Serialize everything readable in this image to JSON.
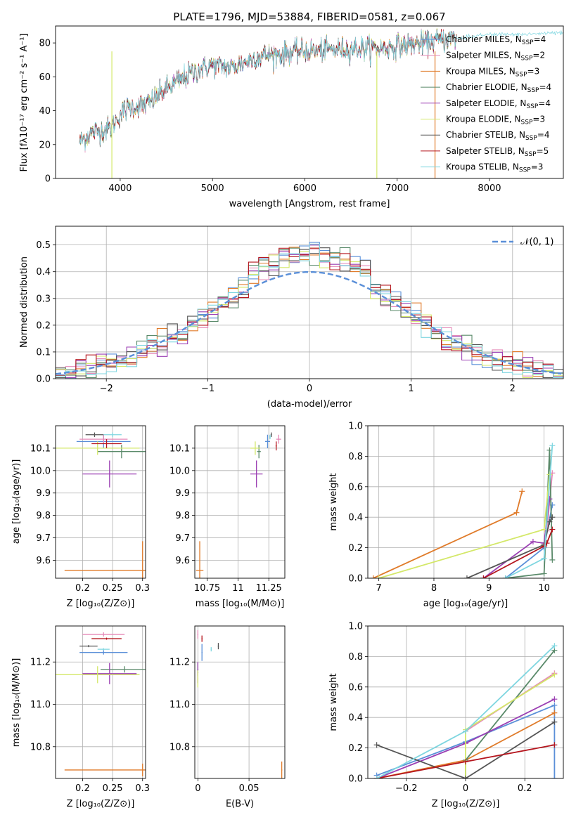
{
  "figure": {
    "title": "PLATE=1796, MJD=53884, FIBERID=0581, z=0.067"
  },
  "colors": {
    "Chabrier MILES": "#5a8fd8",
    "Salpeter MILES": "#e58ab8",
    "Kroupa MILES": "#e07b2a",
    "Chabrier ELODIE": "#5a8a6a",
    "Salpeter ELODIE": "#9b3fb3",
    "Kroupa ELODIE": "#d4e86a",
    "Chabrier STELIB": "#555555",
    "Salpeter STELIB": "#b5161e",
    "Kroupa STELIB": "#7fd6e0",
    "normal": "#5a8fd8"
  },
  "chart_data": [
    {
      "id": "spectrum",
      "type": "line",
      "title": "PLATE=1796, MJD=53884, FIBERID=0581, z=0.067",
      "xlabel": "wavelength [Angstrom, rest frame]",
      "ylabel": "Flux [f_λ 10^-17 erg cm^-2 s^-1 A^-1]",
      "xlim": [
        3300,
        8800
      ],
      "ylim": [
        0,
        90
      ],
      "xticks": [
        4000,
        5000,
        6000,
        7000,
        8000
      ],
      "yticks": [
        0,
        20,
        40,
        60,
        80
      ],
      "legend_placement": "right",
      "legend": [
        {
          "name": "Chabrier MILES",
          "nssp": "4"
        },
        {
          "name": "Salpeter MILES",
          "nssp": "2"
        },
        {
          "name": "Kroupa MILES",
          "nssp": "3"
        },
        {
          "name": "Chabrier ELODIE",
          "nssp": "4"
        },
        {
          "name": "Salpeter ELODIE",
          "nssp": "4"
        },
        {
          "name": "Kroupa ELODIE",
          "nssp": "3"
        },
        {
          "name": "Chabrier STELIB",
          "nssp": "4"
        },
        {
          "name": "Salpeter STELIB",
          "nssp": "5"
        },
        {
          "name": "Kroupa STELIB",
          "nssp": "3"
        }
      ],
      "continuum": {
        "x": [
          3560,
          3700,
          3900,
          4000,
          4100,
          4300,
          4500,
          4800,
          5000,
          5200,
          5500,
          5800,
          6000,
          6300,
          6600,
          6800,
          7000,
          7300,
          7500,
          7700,
          8000,
          8300,
          8800
        ],
        "y": [
          22,
          27,
          30,
          38,
          42,
          44,
          53,
          63,
          67,
          65,
          72,
          74,
          75,
          76,
          77,
          77,
          78,
          80,
          82,
          83,
          85,
          85,
          86
        ]
      },
      "grid": false
    },
    {
      "id": "residuals",
      "type": "histogram",
      "xlabel": "(data-model)/error",
      "ylabel": "Normed distribution",
      "xlim": [
        -2.5,
        2.5
      ],
      "ylim": [
        0,
        0.57
      ],
      "xticks": [
        -2,
        -1,
        0,
        1,
        2
      ],
      "yticks": [
        0.0,
        0.1,
        0.2,
        0.3,
        0.4,
        0.5
      ],
      "reference_curve": "N(0,1)",
      "legend": [
        "𝒩(0, 1)"
      ],
      "legend_placement": "top-right",
      "grid": true
    },
    {
      "id": "age-vs-z",
      "type": "scatter",
      "xlabel": "Z [log10(Z/Z⊙)]",
      "ylabel": "age [log10(age/yr)]",
      "xlim": [
        0.155,
        0.305
      ],
      "ylim": [
        9.52,
        10.2
      ],
      "xticks": [
        0.2,
        0.25,
        0.3
      ],
      "yticks": [
        9.6,
        9.7,
        9.8,
        9.9,
        10.0,
        10.1
      ],
      "points": [
        {
          "series": "Chabrier MILES",
          "x": 0.235,
          "y": 10.13,
          "xerr": 0.045,
          "yerr": 0.03
        },
        {
          "series": "Salpeter MILES",
          "x": 0.235,
          "y": 10.14,
          "xerr": 0.04,
          "yerr": 0.02
        },
        {
          "series": "Kroupa MILES",
          "x": 0.3,
          "y": 9.555,
          "xerr": 0.13,
          "yerr": 0.13
        },
        {
          "series": "Chabrier ELODIE",
          "x": 0.265,
          "y": 10.085,
          "xerr": 0.04,
          "yerr": 0.03
        },
        {
          "series": "Salpeter ELODIE",
          "x": 0.245,
          "y": 9.985,
          "xerr": 0.045,
          "yerr": 0.06
        },
        {
          "series": "Kroupa ELODIE",
          "x": 0.225,
          "y": 10.1,
          "xerr": 0.07,
          "yerr": 0.03
        },
        {
          "series": "Chabrier STELIB",
          "x": 0.22,
          "y": 10.16,
          "xerr": 0.015,
          "yerr": 0.01
        },
        {
          "series": "Salpeter STELIB",
          "x": 0.24,
          "y": 10.12,
          "xerr": 0.025,
          "yerr": 0.02
        },
        {
          "series": "Kroupa STELIB",
          "x": 0.25,
          "y": 10.16,
          "xerr": 0.015,
          "yerr": 0.01
        }
      ],
      "grid": true
    },
    {
      "id": "age-vs-mass",
      "type": "scatter",
      "xlabel": "mass [log10(M/M⊙)]",
      "ylabel": "",
      "xlim": [
        10.65,
        11.38
      ],
      "ylim": [
        9.52,
        10.2
      ],
      "xticks": [
        10.75,
        11.0,
        11.25
      ],
      "yticks": [
        9.6,
        9.7,
        9.8,
        9.9,
        10.0,
        10.1
      ],
      "points": [
        {
          "series": "Chabrier MILES",
          "x": 11.24,
          "y": 10.13,
          "xerr": 0.02,
          "yerr": 0.03
        },
        {
          "series": "Salpeter MILES",
          "x": 11.33,
          "y": 10.14,
          "xerr": 0.02,
          "yerr": 0.02
        },
        {
          "series": "Kroupa MILES",
          "x": 10.69,
          "y": 9.555,
          "xerr": 0.03,
          "yerr": 0.13
        },
        {
          "series": "Chabrier ELODIE",
          "x": 11.17,
          "y": 10.085,
          "xerr": 0.015,
          "yerr": 0.03
        },
        {
          "series": "Salpeter ELODIE",
          "x": 11.15,
          "y": 9.985,
          "xerr": 0.05,
          "yerr": 0.06
        },
        {
          "series": "Kroupa ELODIE",
          "x": 11.14,
          "y": 10.1,
          "xerr": 0.04,
          "yerr": 0.03
        },
        {
          "series": "Chabrier STELIB",
          "x": 11.27,
          "y": 10.16,
          "xerr": 0.005,
          "yerr": 0.01
        },
        {
          "series": "Salpeter STELIB",
          "x": 11.31,
          "y": 10.11,
          "xerr": 0.005,
          "yerr": 0.02
        },
        {
          "series": "Kroupa STELIB",
          "x": 11.26,
          "y": 10.15,
          "xerr": 0.005,
          "yerr": 0.01
        }
      ],
      "grid": true
    },
    {
      "id": "weight-vs-age",
      "type": "line",
      "xlabel": "age [log10(age/yr)]",
      "ylabel": "mass weight",
      "xlim": [
        6.8,
        10.35
      ],
      "ylim": [
        0,
        1.0
      ],
      "xticks": [
        7,
        8,
        9,
        10
      ],
      "yticks": [
        0.0,
        0.2,
        0.4,
        0.6,
        0.8,
        1.0
      ],
      "series": [
        {
          "name": "Chabrier MILES",
          "x": [
            9.3,
            10.0,
            10.15
          ],
          "y": [
            0.0,
            0.2,
            0.48
          ]
        },
        {
          "name": "Salpeter MILES",
          "x": [
            10.05,
            10.15
          ],
          "y": [
            0.31,
            0.69
          ]
        },
        {
          "name": "Kroupa MILES",
          "x": [
            6.9,
            9.5,
            9.6
          ],
          "y": [
            0.0,
            0.43,
            0.57
          ]
        },
        {
          "name": "Chabrier ELODIE",
          "x": [
            9.3,
            10.0,
            10.1,
            10.15
          ],
          "y": [
            0.0,
            0.03,
            0.84,
            0.12
          ]
        },
        {
          "name": "Salpeter ELODIE",
          "x": [
            8.9,
            9.8,
            10.0,
            10.1
          ],
          "y": [
            0.0,
            0.24,
            0.23,
            0.52
          ]
        },
        {
          "name": "Kroupa ELODIE",
          "x": [
            7.0,
            10.0,
            10.1
          ],
          "y": [
            0.0,
            0.32,
            0.68
          ]
        },
        {
          "name": "Chabrier STELIB",
          "x": [
            8.6,
            10.0,
            10.1,
            10.15
          ],
          "y": [
            0.0,
            0.22,
            0.37,
            0.4
          ]
        },
        {
          "name": "Salpeter STELIB",
          "x": [
            8.9,
            10.0,
            10.05,
            10.15
          ],
          "y": [
            0.0,
            0.21,
            0.23,
            0.32
          ]
        },
        {
          "name": "Kroupa STELIB",
          "x": [
            9.3,
            10.0,
            10.15
          ],
          "y": [
            0.0,
            0.13,
            0.87
          ]
        }
      ],
      "grid": true
    },
    {
      "id": "mass-vs-z",
      "type": "scatter",
      "xlabel": "Z [log10(Z/Z⊙)]",
      "ylabel": "mass [log10(M/M⊙)]",
      "xlim": [
        0.155,
        0.305
      ],
      "ylim": [
        10.65,
        11.37
      ],
      "xticks": [
        0.2,
        0.25,
        0.3
      ],
      "yticks": [
        10.8,
        11.0,
        11.2
      ],
      "points": [
        {
          "series": "Chabrier MILES",
          "x": 0.235,
          "y": 11.245,
          "xerr": 0.04,
          "yerr": 0.01
        },
        {
          "series": "Salpeter MILES",
          "x": 0.235,
          "y": 11.33,
          "xerr": 0.035,
          "yerr": 0.01
        },
        {
          "series": "Kroupa MILES",
          "x": 0.3,
          "y": 10.69,
          "xerr": 0.13,
          "yerr": 0.03
        },
        {
          "series": "Chabrier ELODIE",
          "x": 0.27,
          "y": 11.165,
          "xerr": 0.04,
          "yerr": 0.015
        },
        {
          "series": "Salpeter ELODIE",
          "x": 0.245,
          "y": 11.145,
          "xerr": 0.045,
          "yerr": 0.05
        },
        {
          "series": "Kroupa ELODIE",
          "x": 0.225,
          "y": 11.14,
          "xerr": 0.07,
          "yerr": 0.04
        },
        {
          "series": "Chabrier STELIB",
          "x": 0.21,
          "y": 11.275,
          "xerr": 0.015,
          "yerr": 0.005
        },
        {
          "series": "Salpeter STELIB",
          "x": 0.24,
          "y": 11.31,
          "xerr": 0.025,
          "yerr": 0.005
        },
        {
          "series": "Kroupa STELIB",
          "x": 0.235,
          "y": 11.26,
          "xerr": 0.01,
          "yerr": 0.005
        }
      ],
      "grid": true
    },
    {
      "id": "mass-vs-ebv",
      "type": "scatter",
      "xlabel": "E(B-V)",
      "ylabel": "",
      "xlim": [
        -0.003,
        0.085
      ],
      "ylim": [
        10.65,
        11.37
      ],
      "xticks": [
        0.0,
        0.05
      ],
      "yticks": [
        10.8,
        11.0,
        11.2
      ],
      "points": [
        {
          "series": "Chabrier MILES",
          "x": 0.004,
          "y": 11.245,
          "xerr": 0.0005,
          "yerr": 0.04
        },
        {
          "series": "Salpeter MILES",
          "x": 0.0,
          "y": 11.33,
          "xerr": 0.0005,
          "yerr": 0.02
        },
        {
          "series": "Kroupa MILES",
          "x": 0.082,
          "y": 10.69,
          "xerr": 0.0005,
          "yerr": 0.04
        },
        {
          "series": "Chabrier ELODIE",
          "x": 0.0,
          "y": 11.165,
          "xerr": 0.0005,
          "yerr": 0.03
        },
        {
          "series": "Salpeter ELODIE",
          "x": 0.0,
          "y": 11.15,
          "xerr": 0.0005,
          "yerr": 0.05
        },
        {
          "series": "Kroupa ELODIE",
          "x": 0.0,
          "y": 11.12,
          "xerr": 0.0005,
          "yerr": 0.04
        },
        {
          "series": "Chabrier STELIB",
          "x": 0.02,
          "y": 11.275,
          "xerr": 0.0005,
          "yerr": 0.015
        },
        {
          "series": "Salpeter STELIB",
          "x": 0.004,
          "y": 11.31,
          "xerr": 0.0005,
          "yerr": 0.015
        },
        {
          "series": "Kroupa STELIB",
          "x": 0.013,
          "y": 11.26,
          "xerr": 0.0005,
          "yerr": 0.01
        }
      ],
      "grid": true
    },
    {
      "id": "weight-vs-z",
      "type": "line",
      "xlabel": "Z [log10(Z/Z⊙)]",
      "ylabel": "mass weight",
      "xlim": [
        -0.33,
        0.33
      ],
      "ylim": [
        0,
        1.0
      ],
      "xticks": [
        -0.2,
        0.0,
        0.2
      ],
      "yticks": [
        0.0,
        0.2,
        0.4,
        0.6,
        0.8,
        1.0
      ],
      "series": [
        {
          "name": "Chabrier MILES",
          "x": [
            -0.3,
            0.0,
            0.3,
            0.3
          ],
          "y": [
            0.02,
            0.24,
            0.48,
            0.0
          ]
        },
        {
          "name": "Salpeter MILES",
          "x": [
            0.0,
            0.3
          ],
          "y": [
            0.31,
            0.69
          ]
        },
        {
          "name": "Kroupa MILES",
          "x": [
            -0.3,
            0.0,
            0.3
          ],
          "y": [
            0.0,
            0.12,
            0.43
          ]
        },
        {
          "name": "Chabrier ELODIE",
          "x": [
            0.0,
            0.0,
            0.3
          ],
          "y": [
            0.0,
            0.12,
            0.84
          ]
        },
        {
          "name": "Salpeter ELODIE",
          "x": [
            -0.3,
            0.0,
            0.3
          ],
          "y": [
            0.0,
            0.23,
            0.52
          ]
        },
        {
          "name": "Kroupa ELODIE",
          "x": [
            0.0,
            0.0,
            0.3
          ],
          "y": [
            0.0,
            0.32,
            0.68
          ]
        },
        {
          "name": "Chabrier STELIB",
          "x": [
            -0.3,
            0.0,
            0.3
          ],
          "y": [
            0.22,
            0.0,
            0.37
          ]
        },
        {
          "name": "Salpeter STELIB",
          "x": [
            -0.3,
            0.0,
            0.3
          ],
          "y": [
            0.0,
            0.11,
            0.22
          ]
        },
        {
          "name": "Kroupa STELIB",
          "x": [
            -0.3,
            0.0,
            0.3
          ],
          "y": [
            0.0,
            0.31,
            0.87
          ]
        }
      ],
      "grid": true
    }
  ]
}
